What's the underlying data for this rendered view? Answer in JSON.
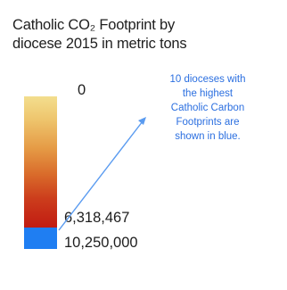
{
  "chart_data": {
    "type": "legend",
    "title_lines": [
      "Catholic CO₂ Footprint by",
      "diocese 2015 in metric tons"
    ],
    "scale": {
      "min_label": "0",
      "threshold_label": "6,318,467",
      "max_label": "10,250,000"
    },
    "annotation_lines": [
      "10 dioceses with",
      "the highest",
      "Catholic Carbon",
      "Footprints are",
      "shown in blue."
    ],
    "colors": {
      "gradient_low": "#f3de8e",
      "gradient_high": "#c11b12",
      "highlight": "#1f7ef2",
      "annotation": "#2b6fe0",
      "text": "#1e1e1e"
    }
  }
}
